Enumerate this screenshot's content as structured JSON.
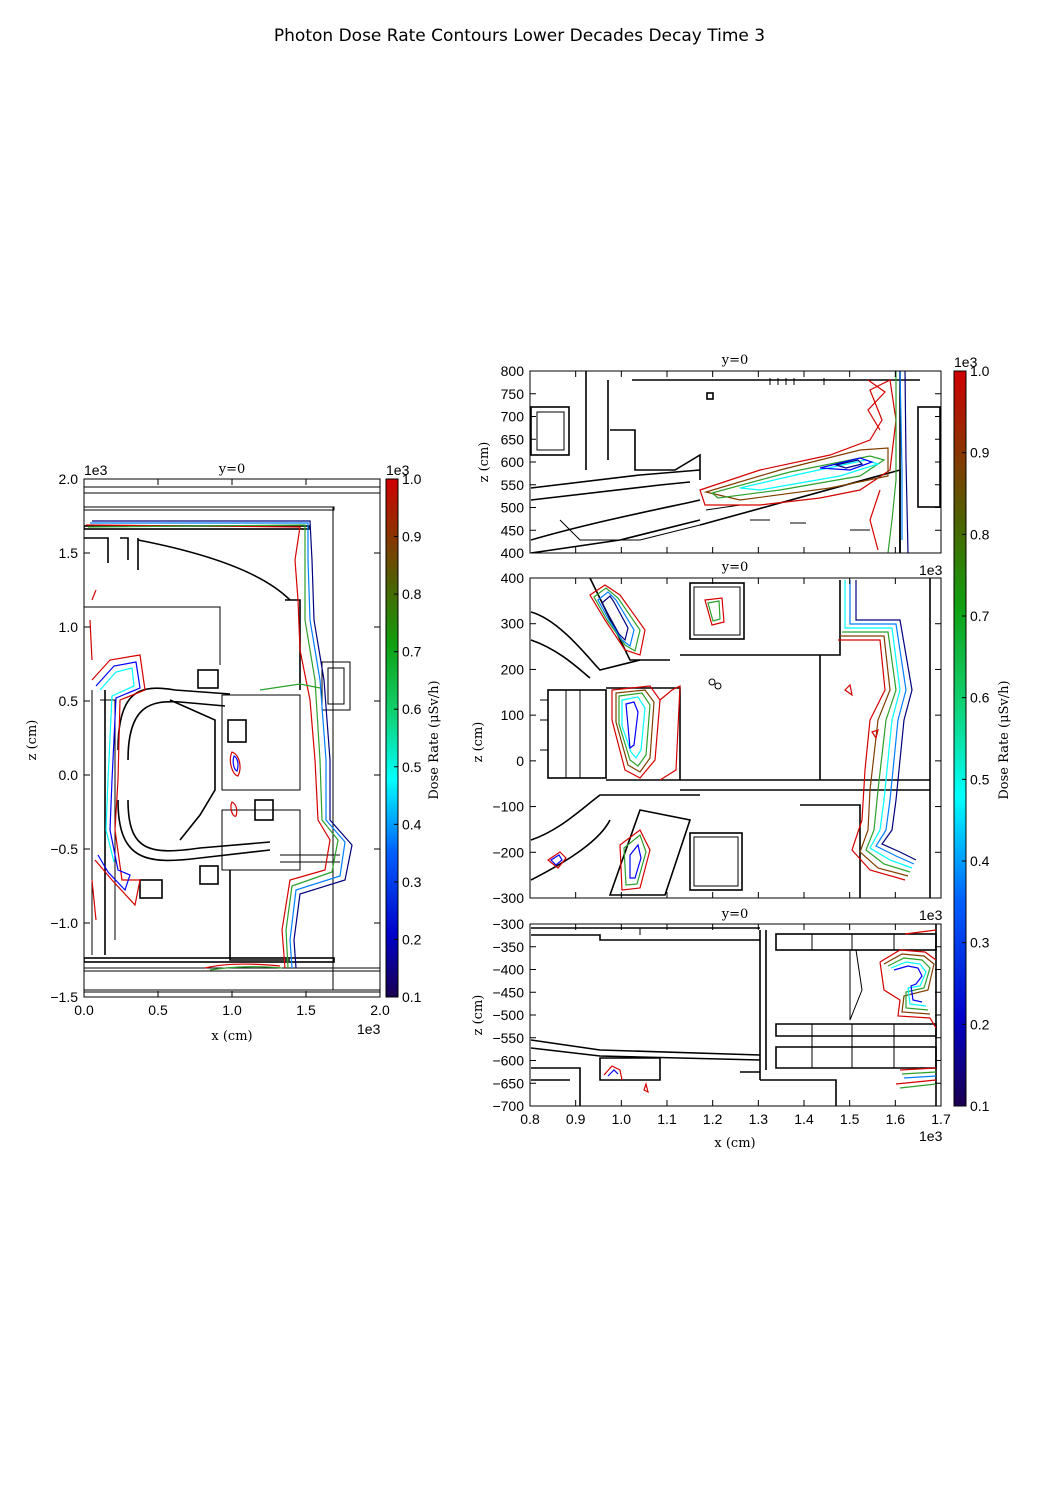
{
  "figure": {
    "title": "Photon Dose Rate Contours Lower Decades Decay Time 3"
  },
  "chart_data": [
    {
      "id": "left",
      "type": "contour",
      "title": "y=0",
      "xlabel": "x (cm)",
      "ylabel": "z (cm)",
      "xlim": [
        0.0,
        2.0
      ],
      "ylim": [
        -1.5,
        2.0
      ],
      "x_ticks": [
        "0.0",
        "0.5",
        "1.0",
        "1.5",
        "2.0"
      ],
      "y_ticks": [
        "2.0",
        "1.5",
        "1.0",
        "0.5",
        "0.0",
        "−0.5",
        "−1.0",
        "−1.5"
      ],
      "x_offset": "1e3",
      "y_offset": "1e3",
      "levels": [
        0.1,
        0.2,
        0.3,
        0.4,
        0.5,
        0.6,
        0.7,
        0.8,
        0.9,
        1.0
      ],
      "level_multiplier": "1e3"
    },
    {
      "id": "right-top",
      "type": "contour",
      "title": "y=0",
      "ylabel": "z (cm)",
      "xlim": [
        0.8,
        1.7
      ],
      "ylim": [
        400,
        800
      ],
      "y_ticks": [
        "800",
        "750",
        "700",
        "650",
        "600",
        "550",
        "500",
        "450",
        "400"
      ],
      "x_offset": "1e3"
    },
    {
      "id": "right-middle",
      "type": "contour",
      "title": "y=0",
      "ylabel": "z (cm)",
      "xlim": [
        0.8,
        1.7
      ],
      "ylim": [
        -300,
        400
      ],
      "y_ticks": [
        "400",
        "300",
        "200",
        "100",
        "0",
        "−100",
        "−200",
        "−300"
      ],
      "x_offset": "1e3"
    },
    {
      "id": "right-bottom",
      "type": "contour",
      "title": "y=0",
      "xlabel": "x (cm)",
      "ylabel": "z (cm)",
      "xlim": [
        0.8,
        1.7
      ],
      "ylim": [
        -700,
        -300
      ],
      "x_ticks": [
        "0.8",
        "0.9",
        "1.0",
        "1.1",
        "1.2",
        "1.3",
        "1.4",
        "1.5",
        "1.6",
        "1.7"
      ],
      "y_ticks": [
        "−300",
        "−350",
        "−400",
        "−450",
        "−500",
        "−550",
        "−600",
        "−650",
        "−700"
      ],
      "x_offset": "1e3"
    }
  ],
  "colorbars": [
    {
      "id": "left-colorbar",
      "label": "Dose Rate (μSv/h)",
      "offset": "1e3",
      "ticks": [
        "1.0",
        "0.9",
        "0.8",
        "0.7",
        "0.6",
        "0.5",
        "0.4",
        "0.3",
        "0.2",
        "0.1"
      ],
      "range": [
        0.1,
        1.0
      ]
    },
    {
      "id": "right-colorbar",
      "label": "Dose Rate (μSv/h)",
      "offset": "1e3",
      "ticks": [
        "1.0",
        "0.9",
        "0.8",
        "0.7",
        "0.6",
        "0.5",
        "0.4",
        "0.3",
        "0.2",
        "0.1"
      ],
      "range": [
        0.1,
        1.0
      ]
    }
  ],
  "colormap": [
    "#00007f",
    "#0000ff",
    "#007fff",
    "#00ffff",
    "#1fcf8f",
    "#2ca02c",
    "#4c6c00",
    "#7f3f00",
    "#b01000",
    "#d60000"
  ]
}
